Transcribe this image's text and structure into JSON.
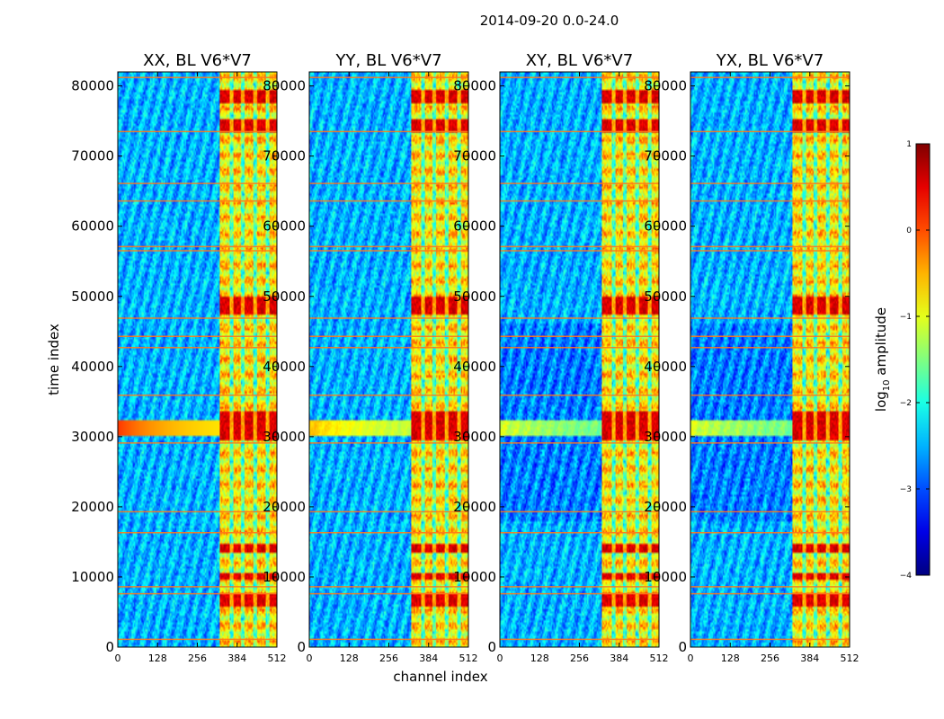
{
  "chart_data": {
    "type": "heatmap",
    "suptitle": "2014-09-20 0.0-24.0",
    "xlabel": "channel index",
    "ylabel": "time index",
    "xlim": [
      0,
      512
    ],
    "ylim": [
      0,
      82000
    ],
    "x_ticks": [
      0,
      128,
      256,
      384,
      512
    ],
    "y_ticks": [
      0,
      10000,
      20000,
      30000,
      40000,
      50000,
      60000,
      70000,
      80000
    ],
    "colormap": "jet",
    "colorbar": {
      "label_main": "log",
      "label_sub": "10",
      "label_end": " amplitude",
      "range": [
        -4,
        1
      ],
      "ticks": [
        1,
        0,
        -1,
        -2,
        -3,
        -4
      ],
      "tick_labels": [
        "1",
        "0",
        "−1",
        "−2",
        "−3",
        "−4"
      ]
    },
    "panels": [
      {
        "title": "XX, BL V6*V7",
        "pol": "XX"
      },
      {
        "title": "YY, BL V6*V7",
        "pol": "YY"
      },
      {
        "title": "XY, BL V6*V7",
        "pol": "XY"
      },
      {
        "title": "YX, BL V6*V7",
        "pol": "YX"
      }
    ],
    "features": {
      "rfi_channel_range": [
        330,
        512
      ],
      "rfi_strong_time_ranges": [
        [
          5500,
          7500
        ],
        [
          9500,
          10500
        ],
        [
          13500,
          14500
        ],
        [
          29500,
          33500
        ],
        [
          47500,
          50000
        ],
        [
          73500,
          75500
        ],
        [
          77500,
          79500
        ]
      ],
      "rfi_channel_gaps": [
        365,
        405,
        445,
        485
      ],
      "broadband_burst_time": 31200,
      "horizontal_line_times": [
        1100,
        7600,
        8600,
        16300,
        19300,
        29100,
        35900,
        42700,
        44300,
        46900,
        56500,
        57100,
        63600,
        66100,
        73500,
        81200
      ]
    }
  }
}
